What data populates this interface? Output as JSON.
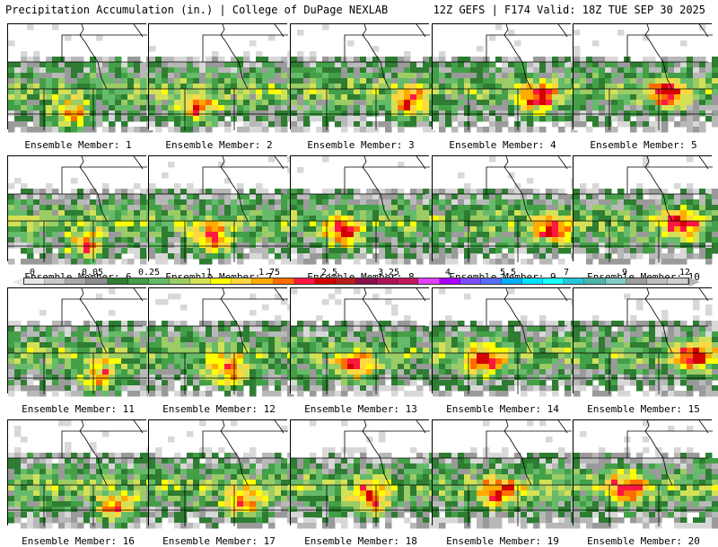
{
  "header": {
    "left": "Precipitation Accumulation (in.) | College of DuPage NEXLAB",
    "right": "12Z GEFS | F174 Valid: 18Z TUE SEP 30 2025"
  },
  "colorbar": {
    "labels": [
      "0",
      "0.05",
      "0.25",
      "1",
      "1.75",
      "2.5",
      "3.25",
      "4",
      "5.5",
      "7",
      "9",
      "12"
    ],
    "colors": [
      "#e6e6e6",
      "#c8c8c8",
      "#a8a8a8",
      "#8c8c8c",
      "#2e7d32",
      "#43a047",
      "#66bb6a",
      "#9ccc65",
      "#d4e157",
      "#ffff00",
      "#ffd740",
      "#ffab00",
      "#ff6d00",
      "#ff1744",
      "#d50000",
      "#b71c1c",
      "#880e4f",
      "#ad1457",
      "#c2185b",
      "#e040fb",
      "#aa00ff",
      "#7c4dff",
      "#536dfe",
      "#00b0ff",
      "#00e5ff",
      "#18ffff",
      "#26c6da",
      "#4db6ac",
      "#80cbc4",
      "#9e9e9e",
      "#bdbdbd",
      "#d0d0d0"
    ]
  },
  "members": [
    {
      "label": "Ensemble Member: 1"
    },
    {
      "label": "Ensemble Member: 2"
    },
    {
      "label": "Ensemble Member: 3"
    },
    {
      "label": "Ensemble Member: 4"
    },
    {
      "label": "Ensemble Member: 5"
    },
    {
      "label": "Ensemble Member: 6"
    },
    {
      "label": "Ensemble Member: 7"
    },
    {
      "label": "Ensemble Member: 8"
    },
    {
      "label": "Ensemble Member: 9"
    },
    {
      "label": "Ensemble Member: 10"
    },
    {
      "label": "Ensemble Member: 11"
    },
    {
      "label": "Ensemble Member: 12"
    },
    {
      "label": "Ensemble Member: 13"
    },
    {
      "label": "Ensemble Member: 14"
    },
    {
      "label": "Ensemble Member: 15"
    },
    {
      "label": "Ensemble Member: 16"
    },
    {
      "label": "Ensemble Member: 17"
    },
    {
      "label": "Ensemble Member: 18"
    },
    {
      "label": "Ensemble Member: 19"
    },
    {
      "label": "Ensemble Member: 20"
    }
  ]
}
